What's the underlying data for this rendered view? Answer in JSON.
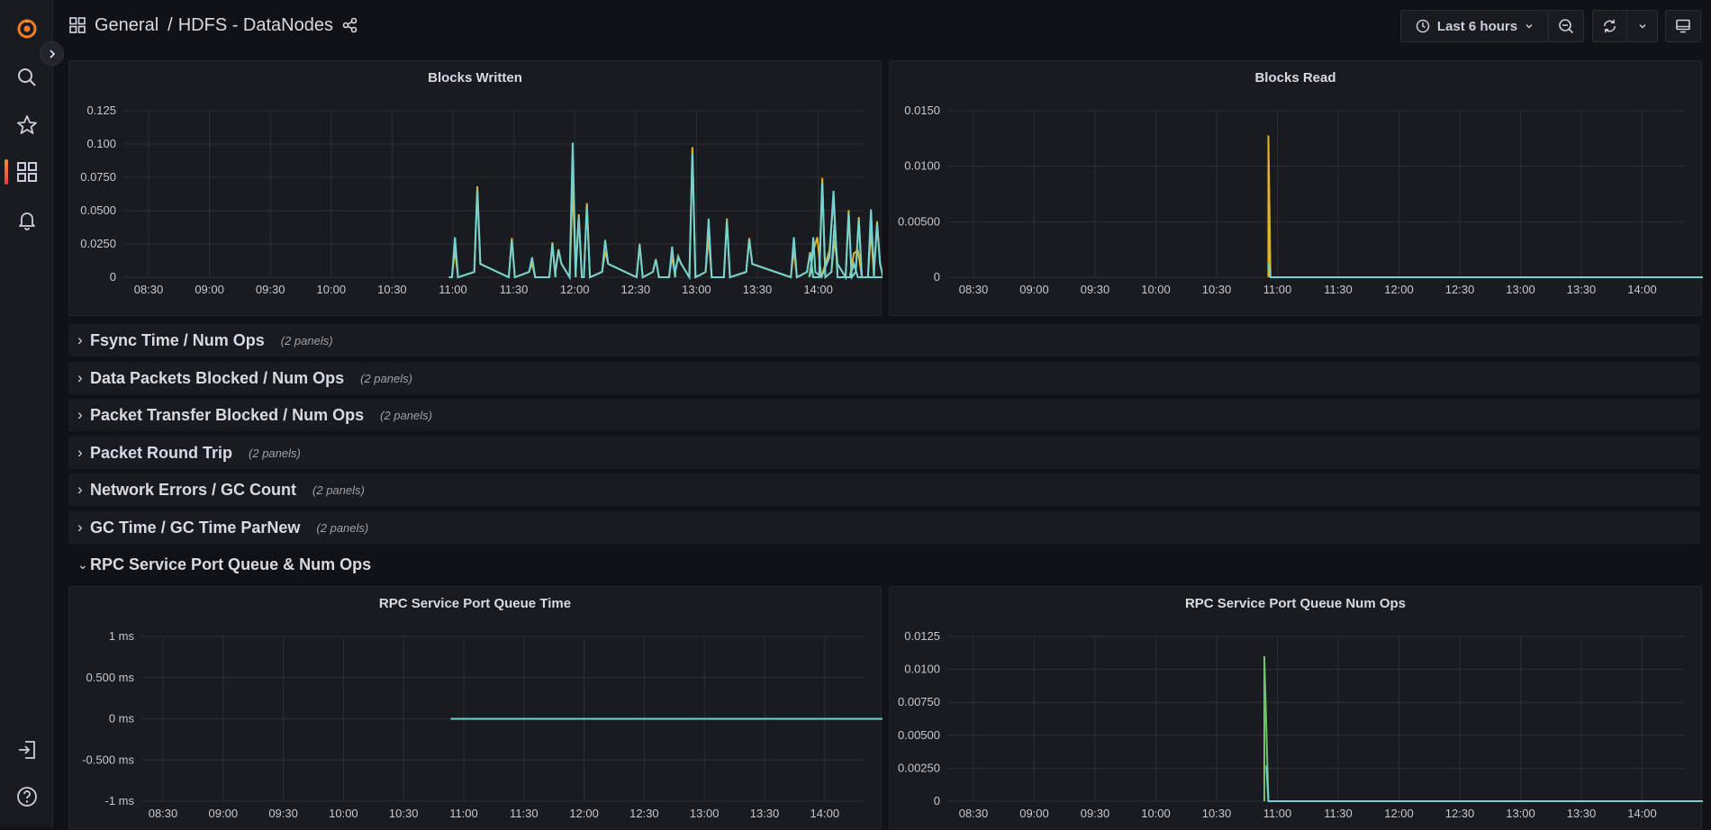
{
  "breadcrumb": {
    "folder": "General",
    "separator": "/",
    "dashboard": "HDFS - DataNodes"
  },
  "toolbar": {
    "time_range": "Last 6 hours"
  },
  "colors": {
    "accent": "#ff8833",
    "series_teal": "#73d2d2",
    "series_yellow": "#e0b32f",
    "series_green": "#73bf69"
  },
  "rows": [
    {
      "title": "Fsync Time / Num Ops",
      "count": "(2 panels)",
      "collapsed": true
    },
    {
      "title": "Data Packets Blocked / Num Ops",
      "count": "(2 panels)",
      "collapsed": true
    },
    {
      "title": "Packet Transfer Blocked / Num Ops",
      "count": "(2 panels)",
      "collapsed": true
    },
    {
      "title": "Packet Round Trip",
      "count": "(2 panels)",
      "collapsed": true
    },
    {
      "title": "Network Errors / GC Count",
      "count": "(2 panels)",
      "collapsed": true
    },
    {
      "title": "GC Time / GC Time ParNew",
      "count": "(2 panels)",
      "collapsed": true
    },
    {
      "title": "RPC Service Port Queue & Num Ops",
      "count": "",
      "collapsed": false
    }
  ],
  "chart_data": [
    {
      "id": "blocks-written",
      "type": "line",
      "title": "Blocks Written",
      "x_ticks": [
        "08:30",
        "09:00",
        "09:30",
        "10:00",
        "10:30",
        "11:00",
        "11:30",
        "12:00",
        "12:30",
        "13:00",
        "13:30",
        "14:00"
      ],
      "y_ticks": [
        "0",
        "0.0250",
        "0.0500",
        "0.0750",
        "0.100",
        "0.125"
      ],
      "ylim": [
        0,
        0.125
      ],
      "xlim_min": [
        480,
        885
      ],
      "series": [
        {
          "color": "#e0b32f",
          "points": [
            [
              840,
              0
            ],
            [
              842,
              0.02
            ],
            [
              844,
              0.03
            ],
            [
              846,
              0
            ],
            [
              850,
              0.02
            ],
            [
              852,
              0.06
            ],
            [
              854,
              0
            ],
            [
              860,
              0
            ],
            [
              862,
              0.018
            ],
            [
              864,
              0.02
            ],
            [
              866,
              0
            ],
            [
              880,
              0
            ],
            [
              882,
              0.028
            ],
            [
              884,
              0
            ]
          ]
        },
        {
          "color": "#73d2d2",
          "points": [
            [
              840,
              0
            ],
            [
              841,
              0.005
            ],
            [
              842,
              0.03
            ],
            [
              843,
              0.004
            ],
            [
              846,
              0
            ],
            [
              850,
              0.015
            ],
            [
              852,
              0.065
            ],
            [
              854,
              0
            ],
            [
              860,
              0
            ],
            [
              862,
              0.01
            ],
            [
              864,
              0
            ],
            [
              880,
              0
            ],
            [
              882,
              0.016
            ],
            [
              884,
              0
            ]
          ]
        }
      ]
    },
    {
      "id": "blocks-read",
      "type": "line",
      "title": "Blocks Read",
      "x_ticks": [
        "08:30",
        "09:00",
        "09:30",
        "10:00",
        "10:30",
        "11:00",
        "11:30",
        "12:00",
        "12:30",
        "13:00",
        "13:30",
        "14:00"
      ],
      "y_ticks": [
        "0",
        "0.00500",
        "0.0100",
        "0.0150"
      ],
      "ylim": [
        0,
        0.0155
      ],
      "series": [
        {
          "color": "#e0b32f",
          "points": [
            [
              660,
              0
            ],
            [
              660,
              0.0132
            ],
            [
              661,
              0
            ]
          ]
        },
        {
          "color": "#73d2d2",
          "points": [
            [
              660,
              0.0013
            ],
            [
              661,
              0
            ],
            [
              885,
              0
            ]
          ]
        }
      ]
    },
    {
      "id": "rpc-queue-time",
      "type": "line",
      "title": "RPC Service Port Queue Time",
      "x_ticks": [
        "08:30",
        "09:00",
        "09:30",
        "10:00",
        "10:30",
        "11:00",
        "11:30",
        "12:00",
        "12:30",
        "13:00",
        "13:30",
        "14:00"
      ],
      "y_ticks": [
        "-1 ms",
        "-0.500 ms",
        "0 ms",
        "0.500 ms",
        "1 ms"
      ],
      "ylim": [
        -1,
        1
      ],
      "series": [
        {
          "color": "#73d2d2",
          "points": [
            [
              658,
              0
            ],
            [
              885,
              0
            ]
          ]
        }
      ]
    },
    {
      "id": "rpc-queue-num-ops",
      "type": "line",
      "title": "RPC Service Port Queue Num Ops",
      "x_ticks": [
        "08:30",
        "09:00",
        "09:30",
        "10:00",
        "10:30",
        "11:00",
        "11:30",
        "12:00",
        "12:30",
        "13:00",
        "13:30",
        "14:00"
      ],
      "y_ticks": [
        "0",
        "0.00250",
        "0.00500",
        "0.00750",
        "0.0100",
        "0.0125"
      ],
      "ylim": [
        0,
        0.0125
      ],
      "series": [
        {
          "color": "#73bf69",
          "points": [
            [
              658,
              0
            ],
            [
              658,
              0.011
            ],
            [
              660,
              0
            ]
          ]
        },
        {
          "color": "#73d2d2",
          "points": [
            [
              659,
              0.0027
            ],
            [
              660,
              0
            ],
            [
              885,
              0
            ]
          ]
        }
      ]
    }
  ]
}
